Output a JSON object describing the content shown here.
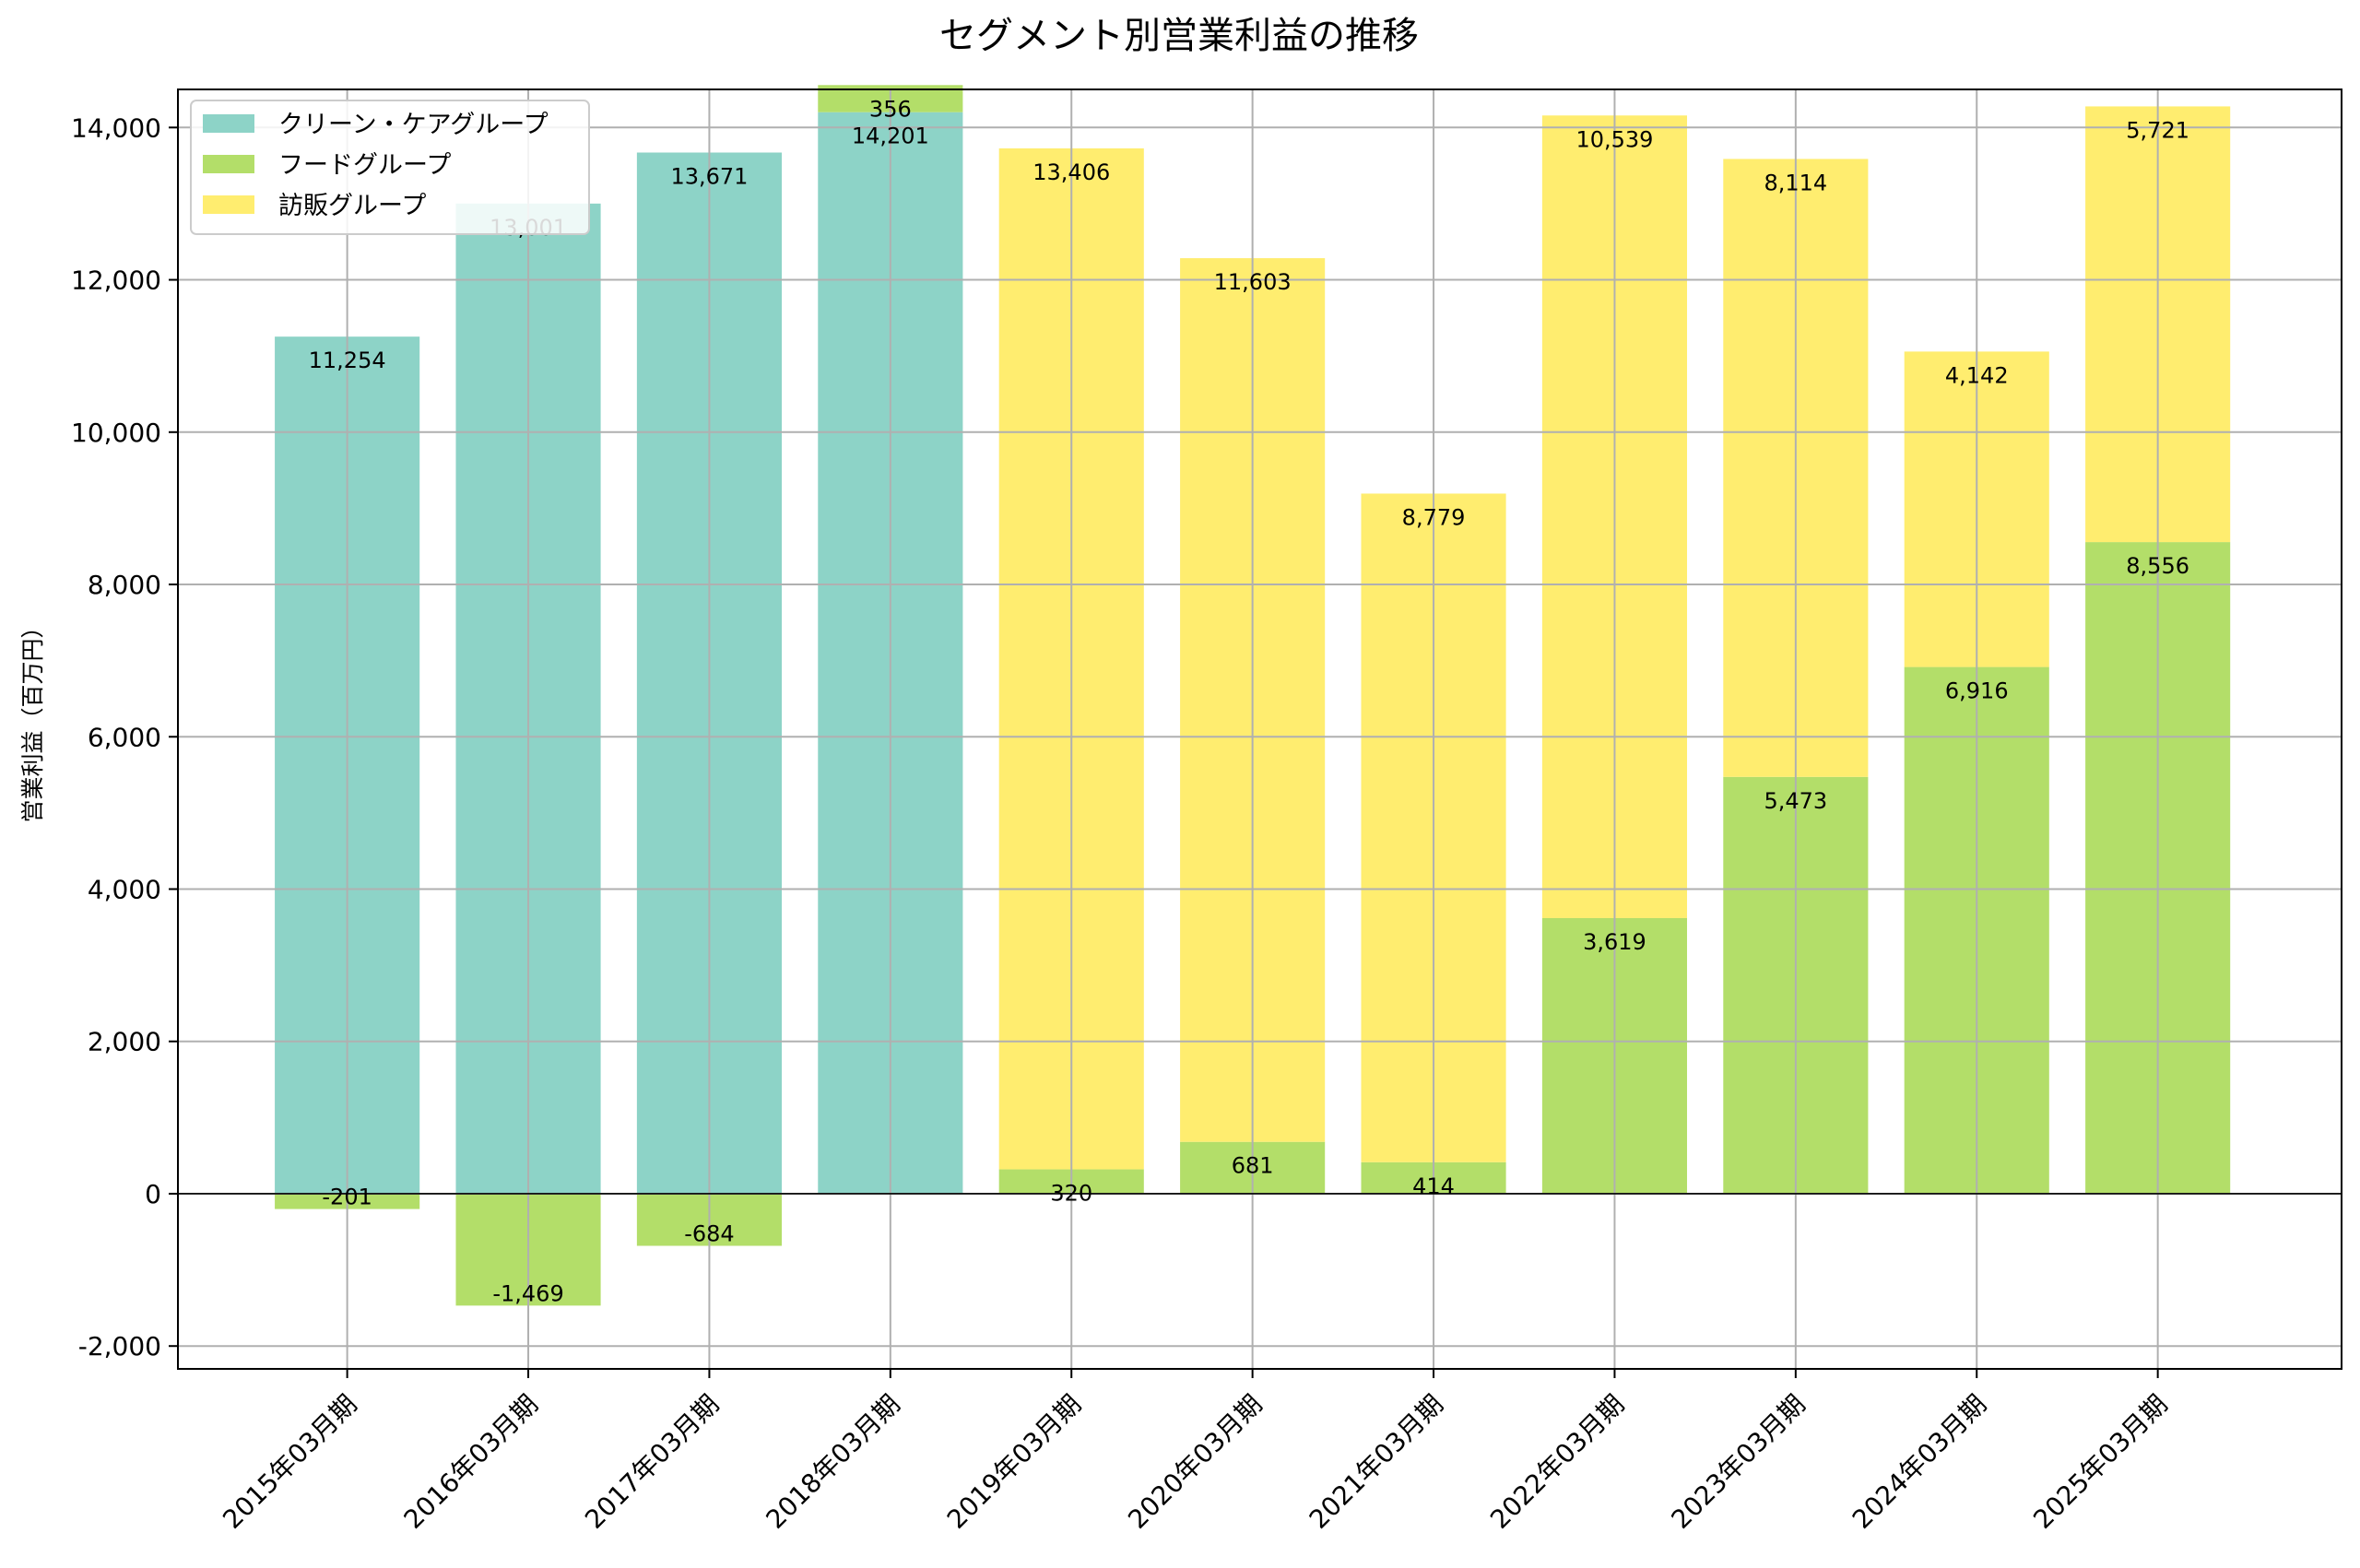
{
  "chart_data": {
    "type": "bar",
    "stacked": true,
    "title": "セグメント別営業利益の推移",
    "xlabel": "",
    "ylabel": "営業利益（百万円）",
    "ylim": [
      -2300,
      14500
    ],
    "yticks": [
      -2000,
      0,
      2000,
      4000,
      6000,
      8000,
      10000,
      12000,
      14000
    ],
    "ytick_labels": [
      "-2,000",
      "0",
      "2,000",
      "4,000",
      "6,000",
      "8,000",
      "10,000",
      "12,000",
      "14,000"
    ],
    "grid": true,
    "legend_position": "top-left",
    "categories": [
      "2015年03月期",
      "2016年03月期",
      "2017年03月期",
      "2018年03月期",
      "2019年03月期",
      "2020年03月期",
      "2021年03月期",
      "2022年03月期",
      "2023年03月期",
      "2024年03月期",
      "2025年03月期"
    ],
    "series": [
      {
        "name": "クリーン・ケアグループ",
        "color": "#8dd3c7",
        "values": [
          11254,
          13001,
          13671,
          14201,
          null,
          null,
          null,
          null,
          null,
          null,
          null
        ],
        "labels": [
          "11,254",
          "13,001",
          "13,671",
          "14,201",
          "",
          "",
          "",
          "",
          "",
          "",
          ""
        ]
      },
      {
        "name": "フードグループ",
        "color": "#b3de69",
        "values": [
          -201,
          -1469,
          -684,
          356,
          320,
          681,
          414,
          3619,
          5473,
          6916,
          8556
        ],
        "labels": [
          "-201",
          "-1,469",
          "-684",
          "356",
          "320",
          "681",
          "414",
          "3,619",
          "5,473",
          "6,916",
          "8,556"
        ]
      },
      {
        "name": "訪販グループ",
        "color": "#ffed6f",
        "values": [
          null,
          null,
          null,
          null,
          13406,
          11603,
          8779,
          10539,
          8114,
          4142,
          5721
        ],
        "labels": [
          "",
          "",
          "",
          "",
          "13,406",
          "11,603",
          "8,779",
          "10,539",
          "8,114",
          "4,142",
          "5,721"
        ]
      }
    ]
  }
}
